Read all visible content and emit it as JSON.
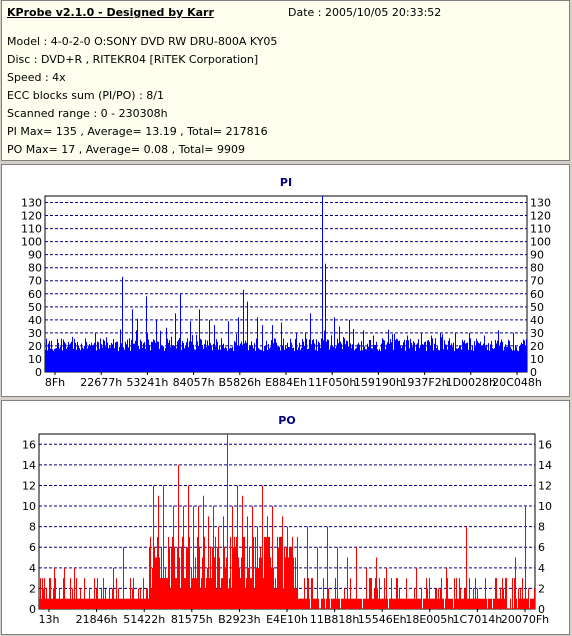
{
  "header": {
    "title": "KProbe v2.1.0 - Designed by Karr",
    "date": "Date : 2005/10/05 20:33:52",
    "model": "Model : 4-0-2-0 O:SONY    DVD RW DRU-800A  KY05",
    "disc": "Disc : DVD+R , RITEKR04 [RiTEK Corporation]",
    "speed": "Speed : 4x",
    "ecc": "ECC blocks sum (PI/PO) : 8/1",
    "range": "Scanned range : 0 - 230308h",
    "pi_stats": "PI Max= 135 , Average= 13.19 , Total= 217816",
    "po_stats": "PO Max= 17 , Average= 0.08 , Total= 9909"
  },
  "colors": {
    "pi": "#0000ff",
    "po": "#ff0000",
    "grid": "#00008b",
    "title": "#000080"
  },
  "chart_data": [
    {
      "type": "bar",
      "title": "PI",
      "color": "#0000ff",
      "ylim": [
        0,
        135
      ],
      "yticks": [
        0,
        10,
        20,
        30,
        40,
        50,
        60,
        70,
        80,
        90,
        100,
        110,
        120,
        130
      ],
      "xticklabels": [
        "8Fh",
        "22677h",
        "53241h",
        "84057h",
        "B5826h",
        "E884Eh",
        "11F050h",
        "159190h",
        "1937F2h",
        "1D0028h",
        "20C048h"
      ],
      "grid": true,
      "baseline_range": [
        16,
        26
      ],
      "peaks": [
        [
          0.04,
          23
        ],
        [
          0.08,
          20
        ],
        [
          0.12,
          25
        ],
        [
          0.16,
          73
        ],
        [
          0.18,
          48
        ],
        [
          0.19,
          41
        ],
        [
          0.21,
          58
        ],
        [
          0.23,
          40
        ],
        [
          0.25,
          34
        ],
        [
          0.27,
          45
        ],
        [
          0.28,
          60
        ],
        [
          0.3,
          39
        ],
        [
          0.32,
          48
        ],
        [
          0.34,
          40
        ],
        [
          0.35,
          36
        ],
        [
          0.38,
          39
        ],
        [
          0.4,
          42
        ],
        [
          0.41,
          63
        ],
        [
          0.42,
          54
        ],
        [
          0.44,
          42
        ],
        [
          0.45,
          36
        ],
        [
          0.47,
          36
        ],
        [
          0.49,
          38
        ],
        [
          0.52,
          30
        ],
        [
          0.54,
          30
        ],
        [
          0.55,
          45
        ],
        [
          0.575,
          135
        ],
        [
          0.58,
          83
        ],
        [
          0.6,
          42
        ],
        [
          0.61,
          35
        ],
        [
          0.63,
          40
        ],
        [
          0.64,
          33
        ],
        [
          0.66,
          32
        ],
        [
          0.68,
          28
        ],
        [
          0.7,
          26
        ],
        [
          0.72,
          29
        ],
        [
          0.75,
          28
        ],
        [
          0.78,
          30
        ],
        [
          0.8,
          28
        ],
        [
          0.82,
          30
        ],
        [
          0.85,
          30
        ],
        [
          0.88,
          30
        ],
        [
          0.91,
          28
        ],
        [
          0.94,
          32
        ],
        [
          0.97,
          30
        ]
      ]
    },
    {
      "type": "bar",
      "title": "PO",
      "color": "#ff0000",
      "ylim": [
        0,
        17
      ],
      "yticks": [
        0,
        2,
        4,
        6,
        8,
        10,
        12,
        14,
        16
      ],
      "xticklabels": [
        "13h",
        "21846h",
        "51422h",
        "81575h",
        "B2923h",
        "E4E10h",
        "11B818h",
        "15546Eh",
        "18E005h",
        "1C7014h",
        "20070Fh"
      ],
      "grid": true,
      "peaks": [
        [
          0.03,
          4
        ],
        [
          0.05,
          4
        ],
        [
          0.07,
          4
        ],
        [
          0.09,
          3
        ],
        [
          0.11,
          3
        ],
        [
          0.13,
          3
        ],
        [
          0.15,
          4
        ],
        [
          0.17,
          6
        ],
        [
          0.19,
          3
        ],
        [
          0.21,
          3
        ],
        [
          0.23,
          12
        ],
        [
          0.24,
          11
        ],
        [
          0.25,
          12
        ],
        [
          0.26,
          7
        ],
        [
          0.27,
          10
        ],
        [
          0.28,
          14
        ],
        [
          0.29,
          10
        ],
        [
          0.3,
          12
        ],
        [
          0.31,
          10
        ],
        [
          0.32,
          10
        ],
        [
          0.33,
          11
        ],
        [
          0.34,
          9
        ],
        [
          0.35,
          10
        ],
        [
          0.36,
          8
        ],
        [
          0.37,
          9
        ],
        [
          0.38,
          17
        ],
        [
          0.39,
          10
        ],
        [
          0.4,
          12
        ],
        [
          0.41,
          11
        ],
        [
          0.42,
          9
        ],
        [
          0.43,
          10
        ],
        [
          0.44,
          8
        ],
        [
          0.45,
          12
        ],
        [
          0.46,
          9
        ],
        [
          0.47,
          10
        ],
        [
          0.48,
          7
        ],
        [
          0.49,
          9
        ],
        [
          0.5,
          8
        ],
        [
          0.52,
          7
        ],
        [
          0.54,
          8
        ],
        [
          0.56,
          6
        ],
        [
          0.58,
          8
        ],
        [
          0.6,
          6
        ],
        [
          0.62,
          5
        ],
        [
          0.64,
          6
        ],
        [
          0.66,
          4
        ],
        [
          0.68,
          5
        ],
        [
          0.7,
          4
        ],
        [
          0.72,
          3
        ],
        [
          0.74,
          3
        ],
        [
          0.76,
          4
        ],
        [
          0.78,
          3
        ],
        [
          0.8,
          2
        ],
        [
          0.82,
          4
        ],
        [
          0.84,
          3
        ],
        [
          0.86,
          8
        ],
        [
          0.88,
          3
        ],
        [
          0.9,
          3
        ],
        [
          0.92,
          3
        ],
        [
          0.94,
          3
        ],
        [
          0.96,
          5
        ],
        [
          0.98,
          10
        ]
      ]
    }
  ]
}
